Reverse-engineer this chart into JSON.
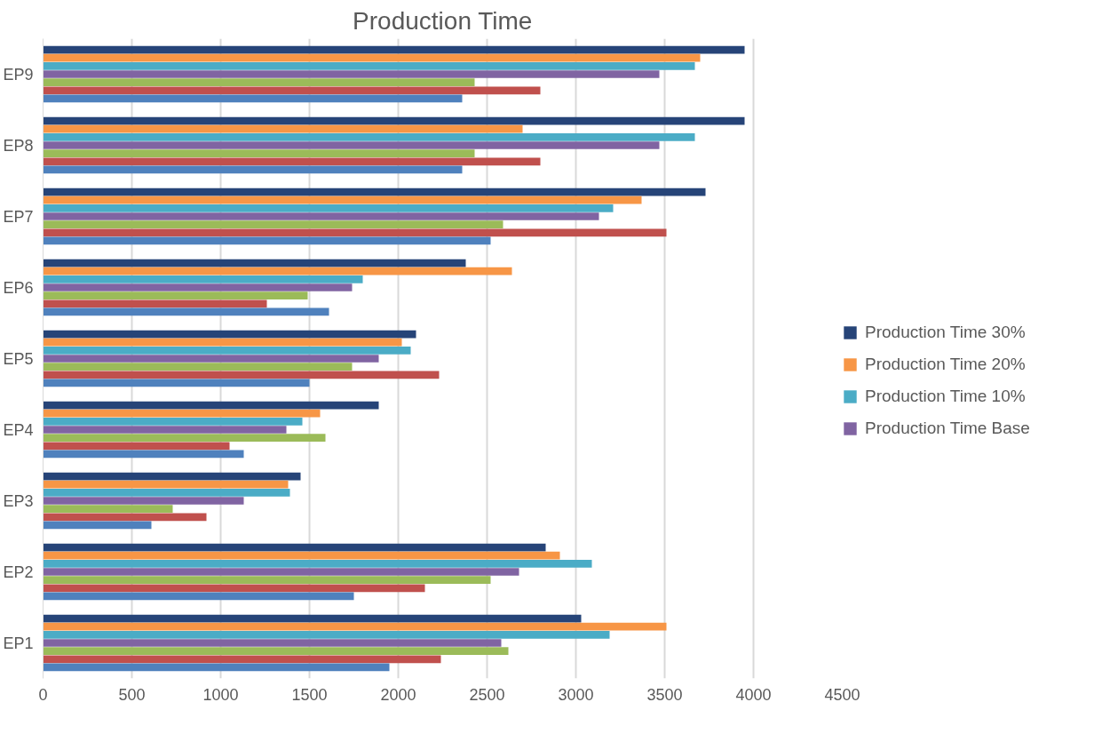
{
  "chart_data": {
    "type": "bar",
    "orientation": "horizontal",
    "title": "Production Time",
    "categories": [
      "EP9",
      "EP8",
      "EP7",
      "EP6",
      "EP5",
      "EP4",
      "EP3",
      "EP2",
      "EP1"
    ],
    "series": [
      {
        "name": "Production Time 30%",
        "color": "#264478",
        "values": [
          3950,
          3950,
          3730,
          2380,
          2100,
          1890,
          1450,
          2830,
          3030
        ]
      },
      {
        "name": "Production Time 20%",
        "color": "#f79646",
        "values": [
          3700,
          2700,
          3370,
          2640,
          2020,
          1560,
          1380,
          2910,
          3510
        ]
      },
      {
        "name": "Production Time 10%",
        "color": "#4bacc6",
        "values": [
          3670,
          3670,
          3210,
          1800,
          2070,
          1460,
          1390,
          3090,
          3190
        ]
      },
      {
        "name": "Production Time Base",
        "color": "#8064a2",
        "values": [
          3470,
          3470,
          3130,
          1740,
          1890,
          1370,
          1130,
          2680,
          2580
        ]
      },
      {
        "color": "#9bbb59",
        "values": [
          2430,
          2430,
          2590,
          1490,
          1740,
          1590,
          730,
          2520,
          2620
        ]
      },
      {
        "color": "#c0504d",
        "values": [
          2800,
          2800,
          3510,
          1260,
          2230,
          1050,
          920,
          2150,
          2240
        ]
      },
      {
        "color": "#4f81bd",
        "values": [
          2360,
          2360,
          2520,
          1610,
          1500,
          1130,
          610,
          1750,
          1950
        ]
      }
    ],
    "xlim": [
      0,
      4500
    ],
    "xticks": [
      0,
      500,
      1000,
      1500,
      2000,
      2500,
      3000,
      3500,
      4000,
      4500
    ],
    "grid": "x",
    "legend": "right"
  }
}
